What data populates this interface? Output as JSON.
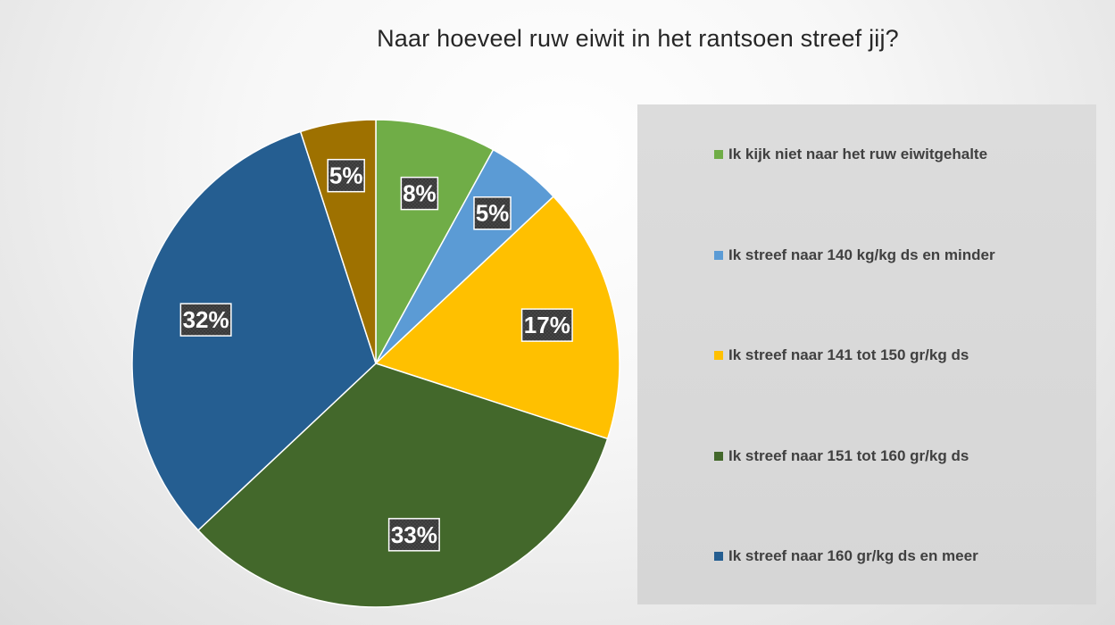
{
  "chart_data": {
    "type": "pie",
    "title": "Naar hoeveel ruw eiwit in het rantsoen streef jij?",
    "legend_position": "right",
    "slices": [
      {
        "label": "Ik kijk niet naar het ruw eiwitgehalte",
        "value": 8,
        "display": "8%",
        "color": "#70ad47"
      },
      {
        "label": "Ik streef naar 140 kg/kg ds en minder",
        "value": 5,
        "display": "5%",
        "color": "#5b9bd5"
      },
      {
        "label": "Ik streef naar 141 tot 150 gr/kg ds",
        "value": 17,
        "display": "17%",
        "color": "#ffc000"
      },
      {
        "label": "Ik streef naar 151 tot 160 gr/kg ds",
        "value": 33,
        "display": "33%",
        "color": "#43682b"
      },
      {
        "label": "Ik streef naar 160 gr/kg ds en meer",
        "value": 32,
        "display": "32%",
        "color": "#255e91"
      },
      {
        "label": "",
        "value": 5,
        "display": "5%",
        "color": "#9e7100"
      }
    ]
  }
}
